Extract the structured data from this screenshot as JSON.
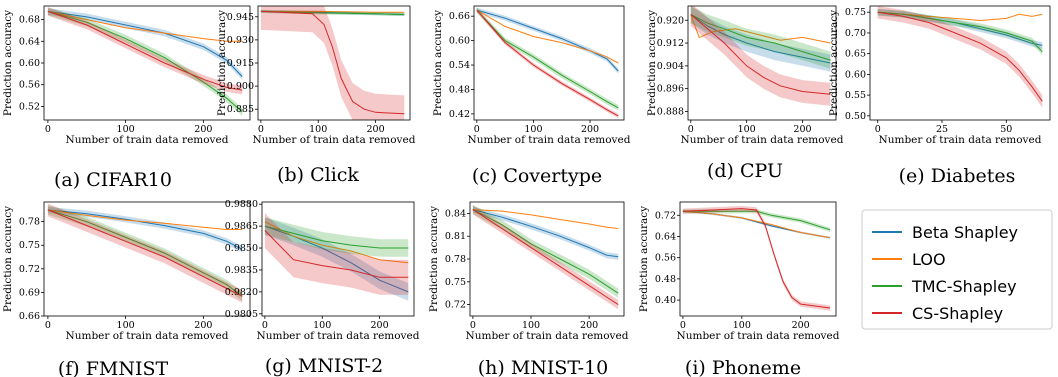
{
  "figure": {
    "legend": [
      {
        "name": "Beta Shapley",
        "color": "#1f77b4"
      },
      {
        "name": "LOO",
        "color": "#ff7f0e"
      },
      {
        "name": "TMC-Shapley",
        "color": "#2ca02c"
      },
      {
        "name": "CS-Shapley",
        "color": "#d62728"
      }
    ]
  },
  "chart_data": [
    {
      "type": "line",
      "caption": "(a) CIFAR10",
      "xlabel": "Number of train data removed",
      "ylabel": "Prediction accuracy",
      "xlim": [
        -5,
        260
      ],
      "ylim": [
        0.495,
        0.705
      ],
      "xticks": [
        "0",
        "100",
        "200"
      ],
      "xtick_values": [
        0,
        100,
        200
      ],
      "yticks": [
        "0.52",
        "0.56",
        "0.60",
        "0.64",
        "0.68"
      ],
      "ytick_values": [
        0.52,
        0.56,
        0.6,
        0.64,
        0.68
      ],
      "series": [
        {
          "name": "Beta Shapley",
          "x": [
            0,
            50,
            100,
            150,
            200,
            230,
            250
          ],
          "y": [
            0.695,
            0.685,
            0.67,
            0.655,
            0.63,
            0.605,
            0.575
          ],
          "band": 0.006
        },
        {
          "name": "LOO",
          "x": [
            0,
            50,
            100,
            150,
            200,
            230,
            250
          ],
          "y": [
            0.695,
            0.68,
            0.665,
            0.655,
            0.645,
            0.64,
            0.64
          ],
          "band": 0.0
        },
        {
          "name": "TMC-Shapley",
          "x": [
            0,
            50,
            100,
            150,
            200,
            230,
            250
          ],
          "y": [
            0.695,
            0.675,
            0.645,
            0.61,
            0.565,
            0.535,
            0.51
          ],
          "band": 0.007
        },
        {
          "name": "CS-Shapley",
          "x": [
            0,
            50,
            100,
            150,
            200,
            230,
            250
          ],
          "y": [
            0.695,
            0.67,
            0.635,
            0.6,
            0.57,
            0.555,
            0.55
          ],
          "band": 0.008
        }
      ]
    },
    {
      "type": "line",
      "caption": "(b) Click",
      "xlabel": "Number of train data removed",
      "ylabel": "Prediction accuracy",
      "xlim": [
        -5,
        260
      ],
      "ylim": [
        0.878,
        0.952
      ],
      "xticks": [
        "0",
        "100",
        "200"
      ],
      "xtick_values": [
        0,
        100,
        200
      ],
      "yticks": [
        "0.885",
        "0.900",
        "0.915",
        "0.930",
        "0.945"
      ],
      "ytick_values": [
        0.885,
        0.9,
        0.915,
        0.93,
        0.945
      ],
      "series": [
        {
          "name": "Beta Shapley",
          "x": [
            0,
            100,
            200,
            250
          ],
          "y": [
            0.9485,
            0.948,
            0.947,
            0.9465
          ],
          "band": 0.001
        },
        {
          "name": "LOO",
          "x": [
            0,
            100,
            200,
            250
          ],
          "y": [
            0.9485,
            0.9485,
            0.948,
            0.948
          ],
          "band": 0.0
        },
        {
          "name": "TMC-Shapley",
          "x": [
            0,
            100,
            200,
            250
          ],
          "y": [
            0.9485,
            0.9475,
            0.947,
            0.9465
          ],
          "band": 0.001
        },
        {
          "name": "CS-Shapley",
          "x": [
            0,
            90,
            110,
            125,
            140,
            160,
            180,
            200,
            250
          ],
          "y": [
            0.9485,
            0.947,
            0.94,
            0.925,
            0.905,
            0.89,
            0.885,
            0.883,
            0.882
          ],
          "band": 0.012
        }
      ]
    },
    {
      "type": "line",
      "caption": "(c) Covertype",
      "xlabel": "Number of train data removed",
      "ylabel": "Prediction accuracy",
      "xlim": [
        -5,
        260
      ],
      "ylim": [
        0.405,
        0.685
      ],
      "xticks": [
        "0",
        "100",
        "200"
      ],
      "xtick_values": [
        0,
        100,
        200
      ],
      "yticks": [
        "0.42",
        "0.48",
        "0.54",
        "0.60",
        "0.66"
      ],
      "ytick_values": [
        0.42,
        0.48,
        0.54,
        0.6,
        0.66
      ],
      "series": [
        {
          "name": "Beta Shapley",
          "x": [
            0,
            50,
            100,
            150,
            200,
            230,
            250
          ],
          "y": [
            0.675,
            0.655,
            0.63,
            0.605,
            0.575,
            0.555,
            0.525
          ],
          "band": 0.006
        },
        {
          "name": "LOO",
          "x": [
            0,
            50,
            100,
            150,
            200,
            230,
            250
          ],
          "y": [
            0.675,
            0.635,
            0.61,
            0.595,
            0.575,
            0.56,
            0.545
          ],
          "band": 0.0
        },
        {
          "name": "TMC-Shapley",
          "x": [
            0,
            50,
            100,
            150,
            200,
            230,
            250
          ],
          "y": [
            0.675,
            0.6,
            0.56,
            0.515,
            0.475,
            0.45,
            0.435
          ],
          "band": 0.007
        },
        {
          "name": "CS-Shapley",
          "x": [
            0,
            50,
            100,
            150,
            200,
            230,
            250
          ],
          "y": [
            0.675,
            0.595,
            0.54,
            0.495,
            0.455,
            0.43,
            0.415
          ],
          "band": 0.005
        }
      ]
    },
    {
      "type": "line",
      "caption": "(d) CPU",
      "xlabel": "Number of train data removed",
      "ylabel": "Prediction accuracy",
      "xlim": [
        -5,
        260
      ],
      "ylim": [
        0.885,
        0.925
      ],
      "xticks": [
        "0",
        "100",
        "200"
      ],
      "xtick_values": [
        0,
        100,
        200
      ],
      "yticks": [
        "0.888",
        "0.896",
        "0.904",
        "0.912",
        "0.920"
      ],
      "ytick_values": [
        0.888,
        0.896,
        0.904,
        0.912,
        0.92
      ],
      "series": [
        {
          "name": "Beta Shapley",
          "x": [
            0,
            30,
            60,
            100,
            150,
            200,
            250
          ],
          "y": [
            0.922,
            0.918,
            0.915,
            0.912,
            0.909,
            0.907,
            0.905
          ],
          "band": 0.003
        },
        {
          "name": "LOO",
          "x": [
            0,
            15,
            40,
            80,
            120,
            160,
            200,
            250
          ],
          "y": [
            0.922,
            0.914,
            0.916,
            0.917,
            0.915,
            0.913,
            0.914,
            0.912
          ],
          "band": 0.0
        },
        {
          "name": "TMC-Shapley",
          "x": [
            0,
            30,
            60,
            100,
            150,
            200,
            250
          ],
          "y": [
            0.922,
            0.919,
            0.917,
            0.914,
            0.912,
            0.909,
            0.906
          ],
          "band": 0.003
        },
        {
          "name": "CS-Shapley",
          "x": [
            0,
            30,
            60,
            100,
            130,
            160,
            200,
            250
          ],
          "y": [
            0.922,
            0.917,
            0.912,
            0.904,
            0.9,
            0.897,
            0.895,
            0.894
          ],
          "band": 0.004
        }
      ]
    },
    {
      "type": "line",
      "caption": "(e) Diabetes",
      "xlabel": "Number of train data removed",
      "ylabel": "Prediction accuracy",
      "xlim": [
        -3,
        67
      ],
      "ylim": [
        0.49,
        0.765
      ],
      "xticks": [
        "0",
        "25",
        "50"
      ],
      "xtick_values": [
        0,
        25,
        50
      ],
      "yticks": [
        "0.50",
        "0.55",
        "0.60",
        "0.65",
        "0.70",
        "0.75"
      ],
      "ytick_values": [
        0.5,
        0.55,
        0.6,
        0.65,
        0.7,
        0.75
      ],
      "series": [
        {
          "name": "Beta Shapley",
          "x": [
            0,
            10,
            20,
            30,
            40,
            50,
            60,
            64
          ],
          "y": [
            0.75,
            0.745,
            0.735,
            0.725,
            0.71,
            0.695,
            0.675,
            0.67
          ],
          "band": 0.008
        },
        {
          "name": "LOO",
          "x": [
            0,
            10,
            20,
            30,
            40,
            50,
            55,
            60,
            64
          ],
          "y": [
            0.75,
            0.745,
            0.74,
            0.735,
            0.73,
            0.735,
            0.745,
            0.74,
            0.745
          ],
          "band": 0.0
        },
        {
          "name": "TMC-Shapley",
          "x": [
            0,
            10,
            20,
            30,
            40,
            50,
            60,
            64
          ],
          "y": [
            0.75,
            0.745,
            0.735,
            0.725,
            0.715,
            0.7,
            0.68,
            0.655
          ],
          "band": 0.008
        },
        {
          "name": "CS-Shapley",
          "x": [
            0,
            10,
            20,
            30,
            40,
            50,
            55,
            60,
            64
          ],
          "y": [
            0.75,
            0.74,
            0.725,
            0.7,
            0.675,
            0.64,
            0.61,
            0.57,
            0.535
          ],
          "band": 0.015
        }
      ]
    },
    {
      "type": "line",
      "caption": "(f) FMNIST",
      "xlabel": "Number of train data removed",
      "ylabel": "Prediction accuracy",
      "xlim": [
        -5,
        260
      ],
      "ylim": [
        0.66,
        0.805
      ],
      "xticks": [
        "0",
        "100",
        "200"
      ],
      "xtick_values": [
        0,
        100,
        200
      ],
      "yticks": [
        "0.66",
        "0.69",
        "0.72",
        "0.75",
        "0.78"
      ],
      "ytick_values": [
        0.66,
        0.69,
        0.72,
        0.75,
        0.78
      ],
      "series": [
        {
          "name": "Beta Shapley",
          "x": [
            0,
            50,
            100,
            150,
            200,
            230,
            250
          ],
          "y": [
            0.795,
            0.79,
            0.783,
            0.775,
            0.765,
            0.755,
            0.745
          ],
          "band": 0.004
        },
        {
          "name": "LOO",
          "x": [
            0,
            50,
            100,
            150,
            200,
            230,
            250
          ],
          "y": [
            0.795,
            0.788,
            0.782,
            0.778,
            0.773,
            0.77,
            0.77
          ],
          "band": 0.0
        },
        {
          "name": "TMC-Shapley",
          "x": [
            0,
            50,
            100,
            150,
            200,
            230,
            250
          ],
          "y": [
            0.795,
            0.78,
            0.76,
            0.74,
            0.715,
            0.7,
            0.685
          ],
          "band": 0.006
        },
        {
          "name": "CS-Shapley",
          "x": [
            0,
            50,
            100,
            150,
            200,
            230,
            250
          ],
          "y": [
            0.795,
            0.775,
            0.755,
            0.735,
            0.71,
            0.695,
            0.685
          ],
          "band": 0.008
        }
      ]
    },
    {
      "type": "line",
      "caption": "(g) MNIST-2",
      "xlabel": "Number of train data removed",
      "ylabel": "",
      "xlim": [
        -5,
        260
      ],
      "ylim": [
        0.98035,
        0.98815
      ],
      "xticks": [
        "0",
        "100",
        "200"
      ],
      "xtick_values": [
        0,
        100,
        200
      ],
      "yticks": [
        "0.9805",
        "0.9820",
        "0.9835",
        "0.9850",
        "0.9865",
        "0.9880"
      ],
      "ytick_values": [
        0.9805,
        0.982,
        0.9835,
        0.985,
        0.9865,
        0.988
      ],
      "series": [
        {
          "name": "Beta Shapley",
          "x": [
            0,
            50,
            100,
            150,
            200,
            250
          ],
          "y": [
            0.9865,
            0.9858,
            0.985,
            0.984,
            0.9828,
            0.982
          ],
          "band": 0.0006
        },
        {
          "name": "LOO",
          "x": [
            0,
            50,
            100,
            150,
            200,
            250
          ],
          "y": [
            0.9868,
            0.9858,
            0.9852,
            0.9848,
            0.9842,
            0.984
          ],
          "band": 0.0
        },
        {
          "name": "TMC-Shapley",
          "x": [
            0,
            50,
            100,
            150,
            200,
            250
          ],
          "y": [
            0.9865,
            0.986,
            0.9855,
            0.9852,
            0.985,
            0.985
          ],
          "band": 0.0006
        },
        {
          "name": "CS-Shapley",
          "x": [
            0,
            50,
            100,
            150,
            200,
            250
          ],
          "y": [
            0.9862,
            0.9842,
            0.9838,
            0.9835,
            0.983,
            0.983
          ],
          "band": 0.0012
        }
      ]
    },
    {
      "type": "line",
      "caption": "(h) MNIST-10",
      "xlabel": "Number of train data removed",
      "ylabel": "Prediction accuracy",
      "xlim": [
        -5,
        260
      ],
      "ylim": [
        0.705,
        0.855
      ],
      "xticks": [
        "0",
        "100",
        "200"
      ],
      "xtick_values": [
        0,
        100,
        200
      ],
      "yticks": [
        "0.72",
        "0.75",
        "0.78",
        "0.81",
        "0.84"
      ],
      "ytick_values": [
        0.72,
        0.75,
        0.78,
        0.81,
        0.84
      ],
      "series": [
        {
          "name": "Beta Shapley",
          "x": [
            0,
            50,
            100,
            150,
            200,
            230,
            250
          ],
          "y": [
            0.845,
            0.835,
            0.823,
            0.81,
            0.795,
            0.785,
            0.783
          ],
          "band": 0.004
        },
        {
          "name": "LOO",
          "x": [
            0,
            50,
            100,
            150,
            200,
            230,
            250
          ],
          "y": [
            0.845,
            0.843,
            0.838,
            0.832,
            0.826,
            0.822,
            0.82
          ],
          "band": 0.0
        },
        {
          "name": "TMC-Shapley",
          "x": [
            0,
            50,
            100,
            150,
            200,
            230,
            250
          ],
          "y": [
            0.845,
            0.825,
            0.8,
            0.78,
            0.76,
            0.745,
            0.735
          ],
          "band": 0.006
        },
        {
          "name": "CS-Shapley",
          "x": [
            0,
            50,
            100,
            150,
            200,
            230,
            250
          ],
          "y": [
            0.845,
            0.82,
            0.795,
            0.77,
            0.745,
            0.73,
            0.72
          ],
          "band": 0.006
        }
      ]
    },
    {
      "type": "line",
      "caption": "(i) Phoneme",
      "xlabel": "Number of train data removed",
      "ylabel": "Prediction accuracy",
      "xlim": [
        -5,
        260
      ],
      "ylim": [
        0.34,
        0.77
      ],
      "xticks": [
        "0",
        "100",
        "200"
      ],
      "xtick_values": [
        0,
        100,
        200
      ],
      "yticks": [
        "0.40",
        "0.48",
        "0.56",
        "0.64",
        "0.72"
      ],
      "ytick_values": [
        0.4,
        0.48,
        0.56,
        0.64,
        0.72
      ],
      "series": [
        {
          "name": "Beta Shapley",
          "x": [
            0,
            50,
            100,
            150,
            200,
            250
          ],
          "y": [
            0.735,
            0.725,
            0.71,
            0.68,
            0.655,
            0.635
          ],
          "band": 0.004
        },
        {
          "name": "LOO",
          "x": [
            0,
            50,
            100,
            150,
            200,
            250
          ],
          "y": [
            0.735,
            0.725,
            0.71,
            0.685,
            0.655,
            0.635
          ],
          "band": 0.0
        },
        {
          "name": "TMC-Shapley",
          "x": [
            0,
            50,
            100,
            125,
            150,
            200,
            250
          ],
          "y": [
            0.735,
            0.735,
            0.735,
            0.735,
            0.72,
            0.7,
            0.665
          ],
          "band": 0.008
        },
        {
          "name": "CS-Shapley",
          "x": [
            0,
            50,
            100,
            125,
            140,
            155,
            170,
            185,
            200,
            250
          ],
          "y": [
            0.735,
            0.74,
            0.745,
            0.74,
            0.68,
            0.57,
            0.47,
            0.41,
            0.385,
            0.37
          ],
          "band": 0.01
        }
      ]
    }
  ]
}
